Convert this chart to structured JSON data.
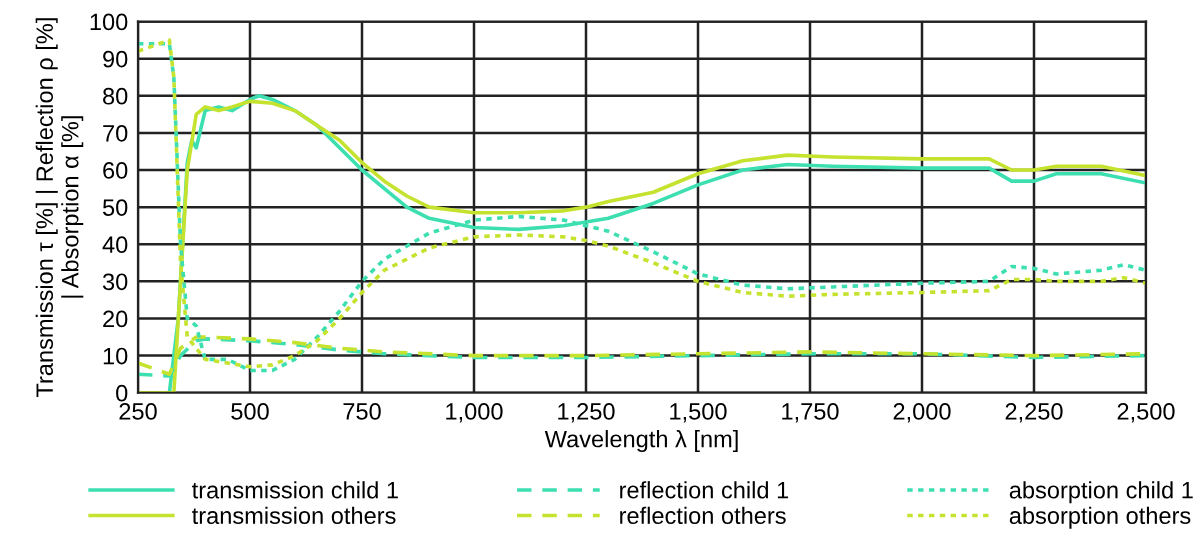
{
  "chart_data": {
    "type": "line",
    "xlabel": "Wavelength λ [nm]",
    "ylabel": "Transmission τ [%] | Reflection ρ [%]\n| Absorption α [%]",
    "xlim": [
      250,
      2500
    ],
    "ylim": [
      0,
      100
    ],
    "xticks": [
      250,
      500,
      750,
      {
        "value": 1000,
        "label": "1,000"
      },
      {
        "value": 1250,
        "label": "1,250"
      },
      {
        "value": 1500,
        "label": "1,500"
      },
      {
        "value": 1750,
        "label": "1,750"
      },
      {
        "value": 2000,
        "label": "2,000"
      },
      {
        "value": 2250,
        "label": "2,250"
      },
      {
        "value": 2500,
        "label": "2,500"
      }
    ],
    "yticks": [
      0,
      10,
      20,
      30,
      40,
      50,
      60,
      70,
      80,
      90,
      100
    ],
    "grid": true,
    "legend": "bottom",
    "marker": "none",
    "series": [
      {
        "name": "transmission child 1",
        "color": "#3ddfb0",
        "line_style": "solid",
        "x": [
          250,
          320,
          340,
          360,
          370,
          380,
          400,
          430,
          460,
          500,
          520,
          550,
          600,
          650,
          700,
          750,
          800,
          850,
          900,
          1000,
          1100,
          1200,
          1250,
          1300,
          1400,
          1500,
          1600,
          1700,
          1800,
          2000,
          2150,
          2200,
          2250,
          2300,
          2400,
          2500
        ],
        "values": [
          0,
          0,
          20,
          62,
          68,
          66,
          76,
          77,
          76,
          79,
          80,
          79,
          76,
          72,
          66,
          60,
          55,
          50,
          47,
          44.5,
          44,
          45,
          46,
          47,
          51,
          56,
          60,
          61.5,
          61,
          60.5,
          60.5,
          57,
          57,
          59,
          59,
          56.5
        ]
      },
      {
        "name": "transmission others",
        "color": "#c5e22e",
        "line_style": "solid",
        "x": [
          250,
          330,
          345,
          360,
          380,
          400,
          430,
          460,
          500,
          550,
          600,
          650,
          700,
          750,
          800,
          850,
          900,
          1000,
          1100,
          1200,
          1250,
          1300,
          1400,
          1500,
          1600,
          1700,
          1800,
          2000,
          2150,
          2200,
          2250,
          2300,
          2400,
          2500
        ],
        "values": [
          0,
          0,
          30,
          60,
          75,
          77,
          76,
          77,
          78.5,
          78,
          76,
          72,
          68,
          62,
          57,
          53,
          50,
          48.5,
          48.5,
          49,
          50,
          51.5,
          54,
          59,
          62.5,
          64,
          63.5,
          63,
          63,
          60,
          60,
          61,
          61,
          58.5
        ]
      },
      {
        "name": "reflection child 1",
        "color": "#3ddfb0",
        "line_style": "dashed",
        "x": [
          250,
          320,
          345,
          380,
          400,
          500,
          600,
          700,
          800,
          1000,
          1250,
          1500,
          1750,
          2000,
          2250,
          2500
        ],
        "values": [
          5,
          4.5,
          10,
          14,
          14.5,
          14,
          13,
          11.5,
          10.5,
          9.5,
          9.5,
          10,
          10.5,
          10.5,
          9.5,
          10
        ]
      },
      {
        "name": "reflection others",
        "color": "#c5e22e",
        "line_style": "dashed",
        "x": [
          250,
          320,
          345,
          380,
          400,
          500,
          600,
          700,
          800,
          1000,
          1250,
          1500,
          1750,
          2000,
          2250,
          2500
        ],
        "values": [
          8,
          5,
          12,
          15,
          15,
          14.5,
          13.5,
          12,
          11,
          10,
          10,
          10.5,
          11,
          10.5,
          10,
          10.5
        ]
      },
      {
        "name": "absorption child 1",
        "color": "#3ddfb0",
        "line_style": "dotted",
        "x": [
          250,
          320,
          330,
          345,
          360,
          380,
          400,
          450,
          500,
          550,
          600,
          650,
          700,
          750,
          800,
          900,
          1000,
          1100,
          1200,
          1300,
          1400,
          1500,
          1600,
          1700,
          1800,
          2000,
          2150,
          2200,
          2250,
          2300,
          2400,
          2450,
          2500
        ],
        "values": [
          94,
          94,
          85,
          40,
          20,
          18,
          9,
          9,
          6,
          6,
          9,
          15,
          22,
          30,
          36,
          43,
          46.5,
          47.5,
          46.5,
          43.5,
          38,
          32,
          29,
          28,
          28.5,
          29.5,
          30,
          34,
          33.5,
          32,
          33,
          34.5,
          33
        ]
      },
      {
        "name": "absorption others",
        "color": "#c5e22e",
        "line_style": "dotted",
        "x": [
          250,
          320,
          330,
          345,
          360,
          400,
          500,
          550,
          600,
          650,
          700,
          750,
          800,
          900,
          1000,
          1100,
          1200,
          1250,
          1300,
          1400,
          1500,
          1600,
          1700,
          1800,
          2000,
          2150,
          2200,
          2250,
          2300,
          2400,
          2450,
          2500
        ],
        "values": [
          92,
          95,
          85,
          35,
          15,
          9,
          7,
          7.5,
          10,
          14,
          20,
          27,
          33,
          39,
          42,
          42.5,
          42,
          41,
          39.5,
          35,
          30,
          27,
          26,
          26.5,
          27,
          27.5,
          30.5,
          30.5,
          30,
          30,
          31,
          29.5
        ]
      }
    ]
  }
}
